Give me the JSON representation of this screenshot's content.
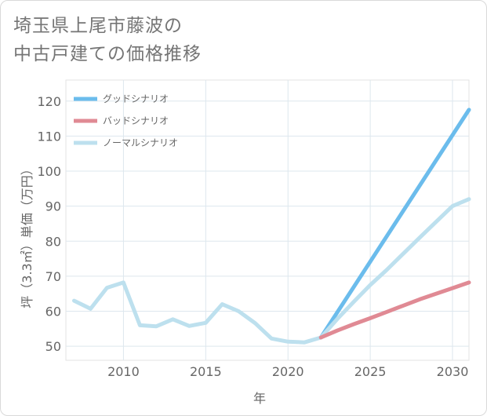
{
  "title_lines": [
    "埼玉県上尾市藤波の",
    "中古戸建ての価格推移"
  ],
  "chart_data": {
    "type": "line",
    "title": "埼玉県上尾市藤波の中古戸建ての価格推移",
    "xlabel": "年",
    "ylabel": "坪（3.3㎡）単価（万円）",
    "xlim": [
      2006.5,
      2031
    ],
    "ylim": [
      46,
      126
    ],
    "xticks": [
      2010,
      2015,
      2020,
      2025,
      2030
    ],
    "yticks": [
      50,
      60,
      70,
      80,
      90,
      100,
      110,
      120
    ],
    "grid": true,
    "legend_position": "top-left",
    "series": [
      {
        "name": "グッドシナリオ",
        "color": "#6bbcec",
        "x": [
          2022,
          2031
        ],
        "values": [
          52.5,
          117.5
        ]
      },
      {
        "name": "バッドシナリオ",
        "color": "#e08a94",
        "x": [
          2022,
          2023,
          2024,
          2025,
          2026,
          2027,
          2028,
          2029,
          2030,
          2031
        ],
        "values": [
          52.5,
          54.5,
          56.3,
          58.0,
          59.8,
          61.6,
          63.4,
          65.0,
          66.6,
          68.2
        ]
      },
      {
        "name": "ノーマルシナリオ",
        "color": "#bde0ee",
        "x": [
          2007,
          2008,
          2009,
          2010,
          2011,
          2012,
          2013,
          2014,
          2015,
          2016,
          2017,
          2018,
          2019,
          2020,
          2021,
          2022,
          2023,
          2024,
          2025,
          2026,
          2027,
          2028,
          2029,
          2030,
          2031
        ],
        "values": [
          63.0,
          60.7,
          66.7,
          68.2,
          56.0,
          55.7,
          57.7,
          55.8,
          56.7,
          62.0,
          60.0,
          56.6,
          52.2,
          51.3,
          51.1,
          52.5,
          57.8,
          62.7,
          67.5,
          71.8,
          76.4,
          81.0,
          85.5,
          90.0,
          92.0
        ]
      }
    ]
  }
}
